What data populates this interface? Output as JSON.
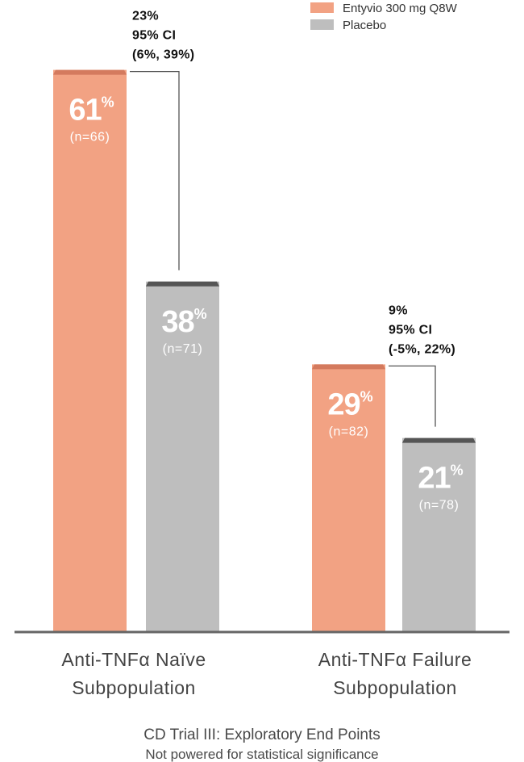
{
  "chart_data": {
    "type": "bar",
    "title": "",
    "categories": [
      "Anti-TNFα Naïve",
      "Anti-TNFα Failure"
    ],
    "category_sublabels": [
      "Subpopulation",
      "Subpopulation"
    ],
    "series": [
      {
        "name": "Entyvio 300 mg Q8W",
        "color": "#F2A283",
        "cap_color": "#D47A5E",
        "values": [
          61,
          29
        ],
        "value_labels": [
          "61",
          "29"
        ],
        "n_labels": [
          "(n=66)",
          "(n=82)"
        ]
      },
      {
        "name": "Placebo",
        "color": "#BEBEBE",
        "cap_color": "#555555",
        "values": [
          38,
          21
        ],
        "value_labels": [
          "38",
          "21"
        ],
        "n_labels": [
          "(n=71)",
          "(n=78)"
        ]
      }
    ],
    "percent_sign": "%",
    "ylim": [
      0,
      75
    ],
    "differences": [
      {
        "lines": [
          "23%",
          "95% CI",
          "(6%, 39%)"
        ]
      },
      {
        "lines": [
          "9%",
          "95% CI",
          "(-5%, 22%)"
        ]
      }
    ],
    "legend_position": "top-right",
    "grid": false,
    "xlabel": "",
    "ylabel": "",
    "footer_title": "CD Trial III: Exploratory End Points",
    "footer_subtitle": "Not powered for statistical significance",
    "axis_color": "#666666"
  }
}
